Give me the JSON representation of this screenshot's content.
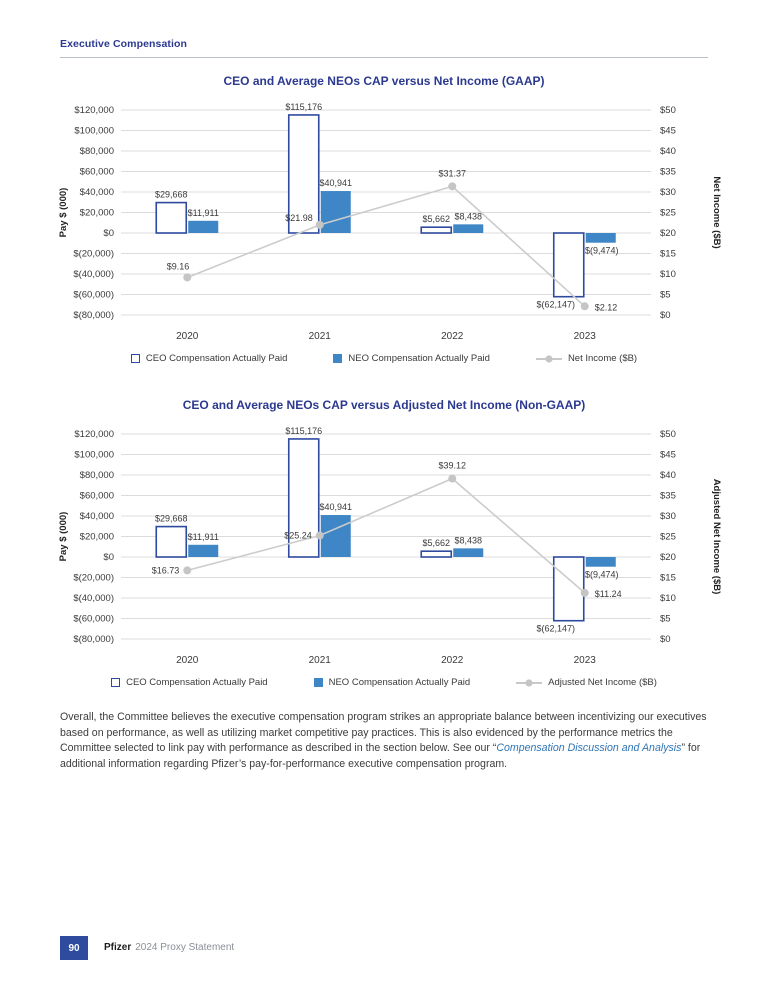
{
  "header": {
    "title": "Executive Compensation"
  },
  "colors": {
    "heading_navy": "#2B3990",
    "ceo_bar_border": "#2E4A9E",
    "neo_bar_fill": "#3E86C6",
    "line_gray": "#CCCCCC",
    "marker_gray": "#C5C5C5",
    "gridline": "#DCDCDC",
    "axis_text": "#3A3A3A",
    "link_blue": "#2E75B6",
    "footer_badge_blue": "#2E4B9E"
  },
  "chart_data": [
    {
      "type": "bar",
      "subtype": "combo-bar-line",
      "title": "CEO and Average NEOs CAP versus Net Income (GAAP)",
      "categories": [
        "2020",
        "2021",
        "2022",
        "2023"
      ],
      "left_axis": {
        "title": "Pay $ (000)",
        "min": -80000,
        "max": 120000,
        "step": 20000,
        "ticks": [
          "$120,000",
          "$100,000",
          "$80,000",
          "$60,000",
          "$40,000",
          "$20,000",
          "$0",
          "$(20,000)",
          "$(40,000)",
          "$(60,000)",
          "$(80,000)"
        ]
      },
      "right_axis": {
        "title": "Net Income ($B)",
        "min": 0,
        "max": 50,
        "step": 5,
        "ticks": [
          "$50",
          "$45",
          "$40",
          "$35",
          "$30",
          "$25",
          "$20",
          "$15",
          "$10",
          "$5",
          "$0"
        ]
      },
      "series": [
        {
          "name": "CEO Compensation Actually Paid",
          "style": "outlined",
          "values": [
            29668,
            115176,
            5662,
            -62147
          ],
          "labels": [
            "$29,668",
            "$115,176",
            "$5,662",
            "$(62,147)"
          ]
        },
        {
          "name": "NEO Compensation Actually Paid",
          "style": "filled",
          "values": [
            11911,
            40941,
            8438,
            -9474
          ],
          "labels": [
            "$11,911",
            "$40,941",
            "$8,438",
            "$(9,474)"
          ]
        }
      ],
      "line_series": {
        "name": "Net Income ($B)",
        "values": [
          9.16,
          21.98,
          31.37,
          2.12
        ],
        "labels": [
          "$9.16",
          "$21.98",
          "$31.37",
          "$2.12"
        ],
        "label_pos": [
          "above-left",
          "left-above",
          "above",
          "right"
        ]
      },
      "legend": [
        "CEO Compensation Actually Paid",
        "NEO Compensation Actually Paid",
        "Net Income ($B)"
      ],
      "grid": true,
      "legend_position": "bottom"
    },
    {
      "type": "bar",
      "subtype": "combo-bar-line",
      "title": "CEO and Average NEOs CAP versus Adjusted Net Income (Non-GAAP)",
      "categories": [
        "2020",
        "2021",
        "2022",
        "2023"
      ],
      "left_axis": {
        "title": "Pay $ (000)",
        "min": -80000,
        "max": 120000,
        "step": 20000,
        "ticks": [
          "$120,000",
          "$100,000",
          "$80,000",
          "$60,000",
          "$40,000",
          "$20,000",
          "$0",
          "$(20,000)",
          "$(40,000)",
          "$(60,000)",
          "$(80,000)"
        ]
      },
      "right_axis": {
        "title": "Adjusted Net Income ($B)",
        "min": 0,
        "max": 50,
        "step": 5,
        "ticks": [
          "$50",
          "$45",
          "$40",
          "$35",
          "$30",
          "$25",
          "$20",
          "$15",
          "$10",
          "$5",
          "$0"
        ]
      },
      "series": [
        {
          "name": "CEO Compensation Actually Paid",
          "style": "outlined",
          "values": [
            29668,
            115176,
            5662,
            -62147
          ],
          "labels": [
            "$29,668",
            "$115,176",
            "$5,662",
            "$(62,147)"
          ]
        },
        {
          "name": "NEO Compensation Actually Paid",
          "style": "filled",
          "values": [
            11911,
            40941,
            8438,
            -9474
          ],
          "labels": [
            "$11,911",
            "$40,941",
            "$8,438",
            "$(9,474)"
          ]
        }
      ],
      "line_series": {
        "name": "Adjusted Net Income ($B)",
        "values": [
          16.73,
          25.24,
          39.12,
          11.24
        ],
        "labels": [
          "$16.73",
          "$25.24",
          "$39.12",
          "$11.24"
        ],
        "label_pos": [
          "left",
          "left",
          "above",
          "right"
        ]
      },
      "legend": [
        "CEO Compensation Actually Paid",
        "NEO Compensation Actually Paid",
        "Adjusted Net Income ($B)"
      ],
      "grid": true,
      "legend_position": "bottom"
    }
  ],
  "paragraph": {
    "before": "Overall, the Committee believes the executive compensation program strikes an appropriate balance between incentivizing our executives based on performance, as well as utilizing market competitive pay practices. This is also evidenced by the performance metrics the Committee selected to link pay with performance as described in the section below. See our “",
    "link": "Compensation Discussion and Analysis",
    "after": "” for additional information regarding Pfizer’s pay-for-performance executive compensation program."
  },
  "footer": {
    "page_number": "90",
    "brand": "Pfizer",
    "statement": "2024 Proxy Statement"
  }
}
